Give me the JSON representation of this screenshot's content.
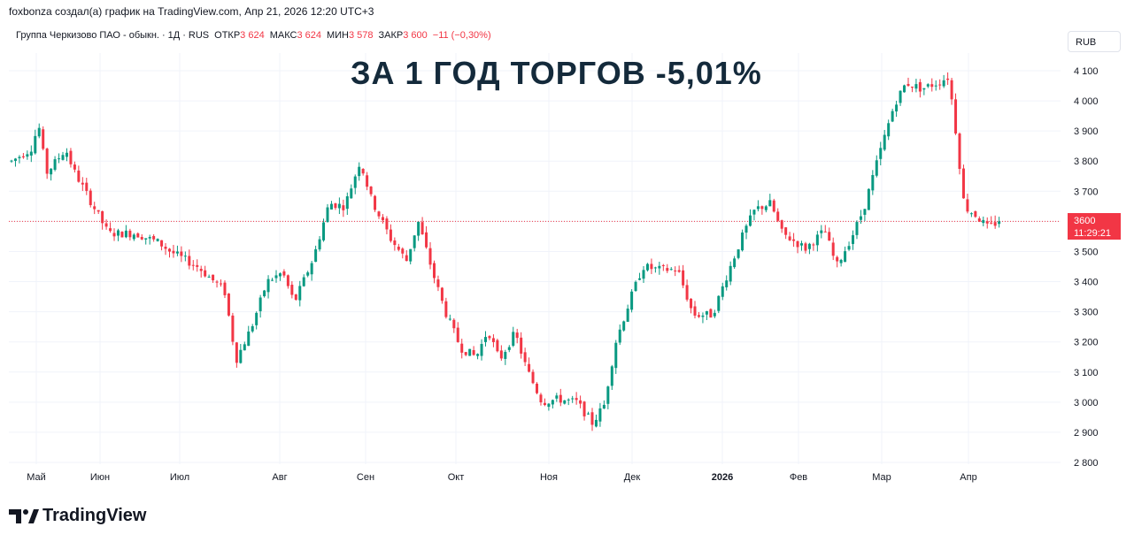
{
  "header": {
    "created_by": "foxbonza создал(а) график на TradingView.com, Апр 21, 2026 12:20 UTC+3"
  },
  "legend": {
    "symbol": "Группа Черкизово ПАО - обыкн.",
    "interval": "1Д",
    "exchange": "RUS",
    "open_label": "ОТКР",
    "open_value": "3 624",
    "high_label": "МАКС",
    "high_value": "3 624",
    "low_label": "МИН",
    "low_value": "3 578",
    "close_label": "ЗАКР",
    "close_value": "3 600",
    "change": "−11 (−0,30%)"
  },
  "headline": "ЗА 1 ГОД ТОРГОВ -5,01%",
  "currency": "RUB",
  "last_price": {
    "value": "3600",
    "countdown": "11:29:21"
  },
  "brand": {
    "name": "TradingView"
  },
  "colors": {
    "up": "#089981",
    "down": "#f23645",
    "text": "#131722",
    "headline": "#142a3b",
    "price_line": "#f23645"
  },
  "chart_data": {
    "type": "candlestick",
    "x_tick_labels": [
      "Май",
      "Июн",
      "Июл",
      "Авг",
      "Сен",
      "Окт",
      "Ноя",
      "Дек",
      "2026",
      "Фев",
      "Мар",
      "Апр"
    ],
    "y_tick_labels": [
      "4 100",
      "4 000",
      "3 900",
      "3 800",
      "3 700",
      "3 600",
      "3 500",
      "3 400",
      "3 300",
      "3 200",
      "3 100",
      "3 000",
      "2 900",
      "2 800"
    ],
    "y_range": [
      2800,
      4100
    ],
    "last_value": 3600,
    "path": [
      {
        "m": 0.0,
        "v": 3800
      },
      {
        "m": 0.25,
        "v": 3840
      },
      {
        "m": 0.35,
        "v": 3920
      },
      {
        "m": 0.45,
        "v": 3760
      },
      {
        "m": 0.7,
        "v": 3840
      },
      {
        "m": 0.8,
        "v": 3770
      },
      {
        "m": 1.1,
        "v": 3630
      },
      {
        "m": 1.25,
        "v": 3560
      },
      {
        "m": 1.6,
        "v": 3560
      },
      {
        "m": 1.9,
        "v": 3530
      },
      {
        "m": 2.05,
        "v": 3500
      },
      {
        "m": 2.4,
        "v": 3450
      },
      {
        "m": 2.75,
        "v": 3370
      },
      {
        "m": 2.9,
        "v": 3140
      },
      {
        "m": 3.1,
        "v": 3250
      },
      {
        "m": 3.3,
        "v": 3400
      },
      {
        "m": 3.5,
        "v": 3430
      },
      {
        "m": 3.65,
        "v": 3330
      },
      {
        "m": 3.9,
        "v": 3480
      },
      {
        "m": 4.1,
        "v": 3660
      },
      {
        "m": 4.3,
        "v": 3650
      },
      {
        "m": 4.5,
        "v": 3800
      },
      {
        "m": 4.65,
        "v": 3670
      },
      {
        "m": 4.9,
        "v": 3540
      },
      {
        "m": 5.1,
        "v": 3470
      },
      {
        "m": 5.25,
        "v": 3600
      },
      {
        "m": 5.45,
        "v": 3420
      },
      {
        "m": 5.6,
        "v": 3300
      },
      {
        "m": 5.8,
        "v": 3180
      },
      {
        "m": 6.0,
        "v": 3150
      },
      {
        "m": 6.15,
        "v": 3240
      },
      {
        "m": 6.3,
        "v": 3140
      },
      {
        "m": 6.5,
        "v": 3230
      },
      {
        "m": 6.65,
        "v": 3110
      },
      {
        "m": 6.85,
        "v": 3000
      },
      {
        "m": 7.05,
        "v": 3010
      },
      {
        "m": 7.3,
        "v": 3000
      },
      {
        "m": 7.5,
        "v": 2930
      },
      {
        "m": 7.65,
        "v": 2990
      },
      {
        "m": 7.8,
        "v": 3200
      },
      {
        "m": 8.0,
        "v": 3350
      },
      {
        "m": 8.15,
        "v": 3450
      },
      {
        "m": 8.35,
        "v": 3440
      },
      {
        "m": 8.6,
        "v": 3440
      },
      {
        "m": 8.8,
        "v": 3290
      },
      {
        "m": 9.05,
        "v": 3290
      },
      {
        "m": 9.25,
        "v": 3430
      },
      {
        "m": 9.45,
        "v": 3560
      },
      {
        "m": 9.6,
        "v": 3640
      },
      {
        "m": 9.8,
        "v": 3660
      },
      {
        "m": 9.95,
        "v": 3560
      },
      {
        "m": 10.25,
        "v": 3510
      },
      {
        "m": 10.5,
        "v": 3570
      },
      {
        "m": 10.65,
        "v": 3450
      },
      {
        "m": 10.85,
        "v": 3550
      },
      {
        "m": 11.0,
        "v": 3640
      },
      {
        "m": 11.2,
        "v": 3820
      },
      {
        "m": 11.4,
        "v": 3990
      },
      {
        "m": 11.55,
        "v": 4060
      },
      {
        "m": 11.75,
        "v": 4040
      },
      {
        "m": 11.95,
        "v": 4060
      },
      {
        "m": 12.1,
        "v": 4080
      },
      {
        "m": 12.2,
        "v": 3880
      },
      {
        "m": 12.3,
        "v": 3650
      },
      {
        "m": 12.45,
        "v": 3620
      },
      {
        "m": 12.6,
        "v": 3580
      },
      {
        "m": 12.75,
        "v": 3600
      }
    ]
  }
}
